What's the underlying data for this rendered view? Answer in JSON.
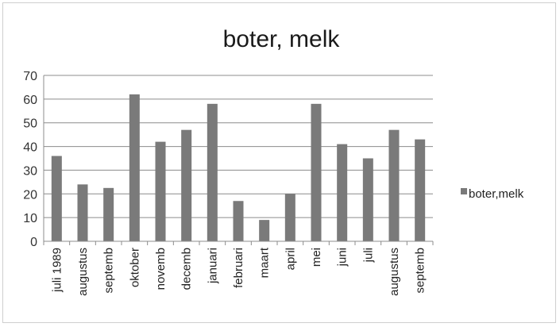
{
  "chart_data": {
    "type": "bar",
    "title": "boter, melk",
    "xlabel": "",
    "ylabel": "",
    "ylim": [
      0,
      70
    ],
    "yticks": [
      "0",
      "10",
      "20",
      "30",
      "40",
      "50",
      "60",
      "70"
    ],
    "grid": true,
    "legend_position": "right",
    "categories": [
      "juli 1989",
      "augustus",
      "septemb",
      "oktober",
      "novemb",
      "decemb",
      "januari",
      "februari",
      "maart",
      "april",
      "mei",
      "juni",
      "juli",
      "augustus",
      "septemb"
    ],
    "series": [
      {
        "name": "boter,melk",
        "color": "#7a7a7a",
        "values": [
          36,
          24,
          22.5,
          62,
          42,
          47,
          58,
          17,
          9,
          20,
          58,
          41,
          35,
          47,
          43
        ]
      }
    ]
  }
}
